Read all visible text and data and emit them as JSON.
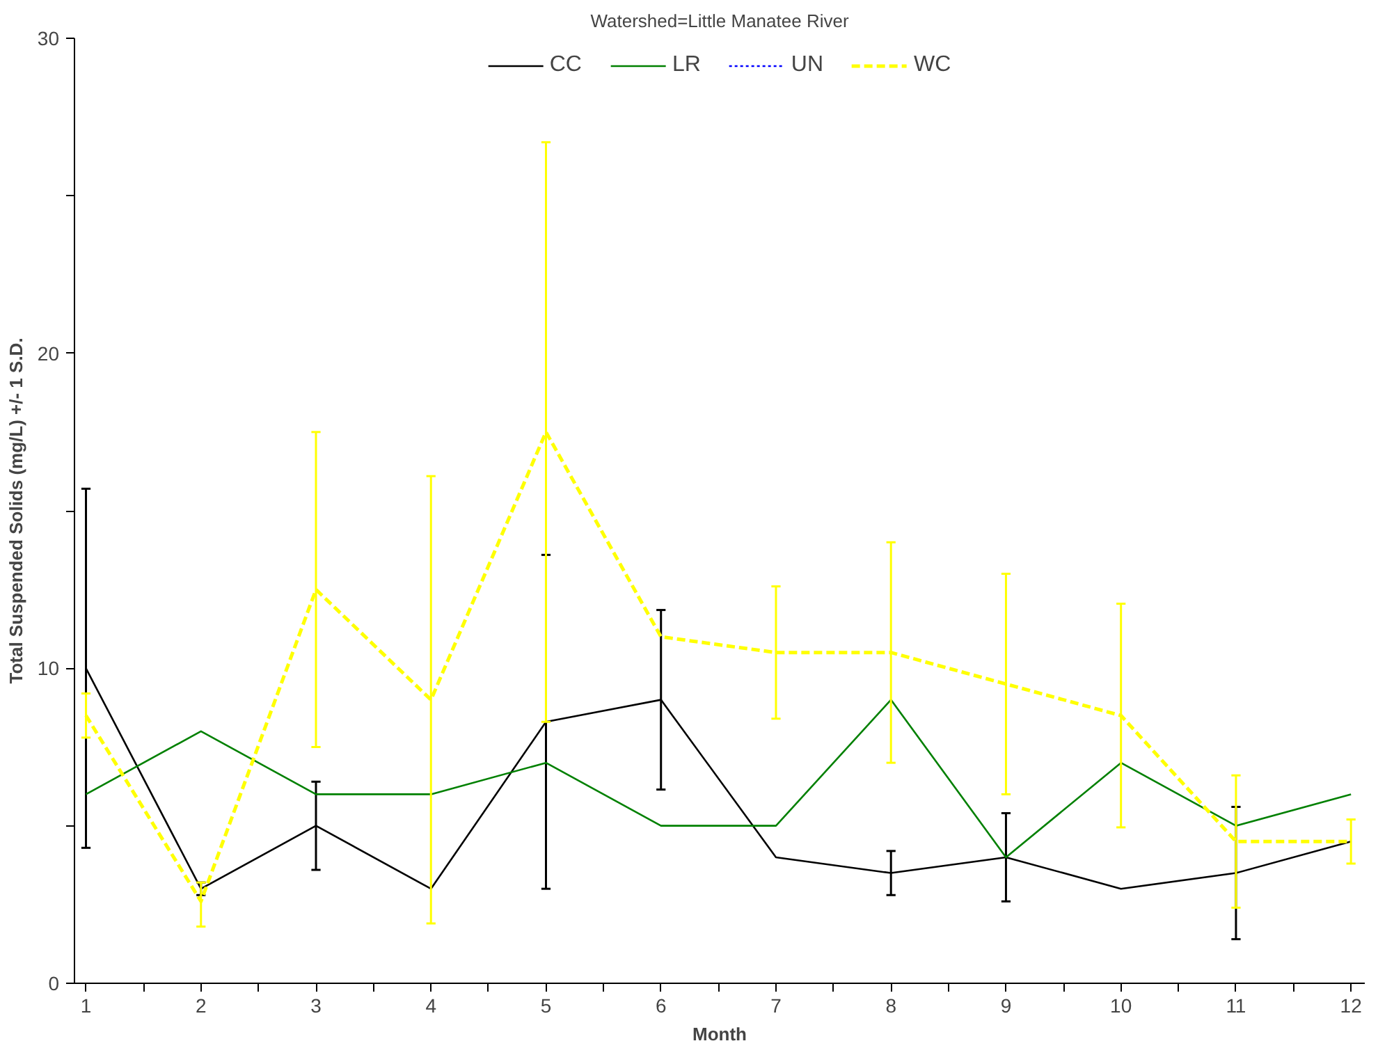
{
  "chart_data": {
    "type": "line",
    "title": "Watershed=Little Manatee River",
    "xlabel": "Month",
    "ylabel": "Total Suspended Solids (mg/L) +/- 1 S.D.",
    "x": [
      1,
      2,
      3,
      4,
      5,
      6,
      7,
      8,
      9,
      10,
      11,
      12
    ],
    "xlim": [
      0.9,
      12.12
    ],
    "xticks": [
      1,
      {
        "value": 1.5,
        "label": null
      },
      2,
      {
        "value": 2.5,
        "label": null
      },
      3,
      {
        "value": 3.5,
        "label": null
      },
      4,
      {
        "value": 4.5,
        "label": null
      },
      5,
      {
        "value": 5.5,
        "label": null
      },
      6,
      {
        "value": 6.5,
        "label": null
      },
      7,
      {
        "value": 7.5,
        "label": null
      },
      8,
      {
        "value": 8.5,
        "label": null
      },
      9,
      {
        "value": 9.5,
        "label": null
      },
      10,
      {
        "value": 10.5,
        "label": null
      },
      11,
      {
        "value": 11.5,
        "label": null
      },
      12
    ],
    "ylim": [
      0,
      30
    ],
    "yticks": [
      0,
      {
        "value": 5,
        "label": null
      },
      10,
      {
        "value": 15,
        "label": null
      },
      20,
      {
        "value": 25,
        "label": null
      },
      30
    ],
    "grid": false,
    "legend": "top",
    "marker": "none",
    "series": [
      {
        "name": "CC",
        "color": "#000000",
        "line_style": "solid",
        "values": [
          10,
          3.0,
          5.0,
          3.0,
          8.3,
          9.0,
          4.0,
          3.5,
          4.0,
          3.0,
          3.5,
          4.5
        ],
        "errors": [
          5.7,
          0.2,
          1.4,
          null,
          5.3,
          2.85,
          null,
          0.7,
          1.4,
          null,
          2.1,
          null
        ]
      },
      {
        "name": "LR",
        "color": "#008000",
        "line_style": "solid",
        "values": [
          6.0,
          8.0,
          6.0,
          6.0,
          7.0,
          5.0,
          5.0,
          9.0,
          4.0,
          7.0,
          5.0,
          6.0
        ]
      },
      {
        "name": "UN",
        "color": "#0000ff",
        "line_style": "dotted",
        "values": [
          null,
          null,
          null,
          null,
          null,
          null,
          null,
          null,
          null,
          null,
          null,
          null
        ]
      },
      {
        "name": "WC",
        "color": "#ffff00",
        "line_style": "dashed",
        "values": [
          8.5,
          2.6,
          12.5,
          9.0,
          17.5,
          11.0,
          10.5,
          10.5,
          9.5,
          8.5,
          4.5,
          4.5
        ],
        "errors": [
          0.7,
          [
            1.8,
            3.2
          ],
          5.0,
          7.1,
          9.2,
          null,
          2.1,
          3.5,
          3.5,
          3.55,
          2.1,
          0.7
        ]
      }
    ]
  }
}
